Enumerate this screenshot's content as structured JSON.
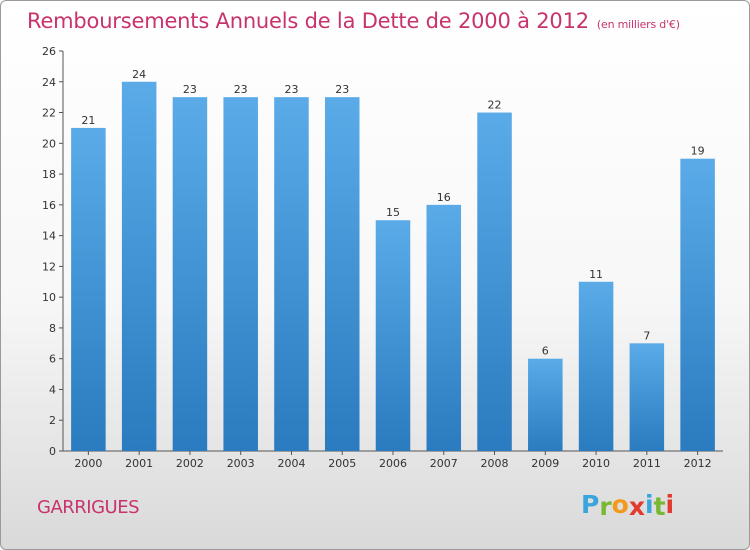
{
  "page": {
    "title": "Remboursements Annuels de la Dette de 2000 à 2012",
    "subtitle": "(en milliers d'€)",
    "commune": "GARRIGUES",
    "logo": {
      "letters": [
        "P",
        "r",
        "o",
        "x",
        "i",
        "t",
        "i"
      ],
      "colors": [
        "#3aa5dc",
        "#7ab833",
        "#f39a1e",
        "#e23a2e",
        "#3aa5dc",
        "#7ab833",
        "#e23a2e"
      ]
    }
  },
  "chart_data": {
    "type": "bar",
    "categories": [
      "2000",
      "2001",
      "2002",
      "2003",
      "2004",
      "2005",
      "2006",
      "2007",
      "2008",
      "2009",
      "2010",
      "2011",
      "2012"
    ],
    "values": [
      21,
      24,
      23,
      23,
      23,
      23,
      15,
      16,
      22,
      6,
      11,
      7,
      19
    ],
    "ylim": [
      0,
      26
    ],
    "yticks": [
      0,
      2,
      4,
      6,
      8,
      10,
      12,
      14,
      16,
      18,
      20,
      22,
      24,
      26
    ],
    "grid": false,
    "bar_color_top": "#5aabe8",
    "bar_color_bottom": "#2a7bbf"
  }
}
